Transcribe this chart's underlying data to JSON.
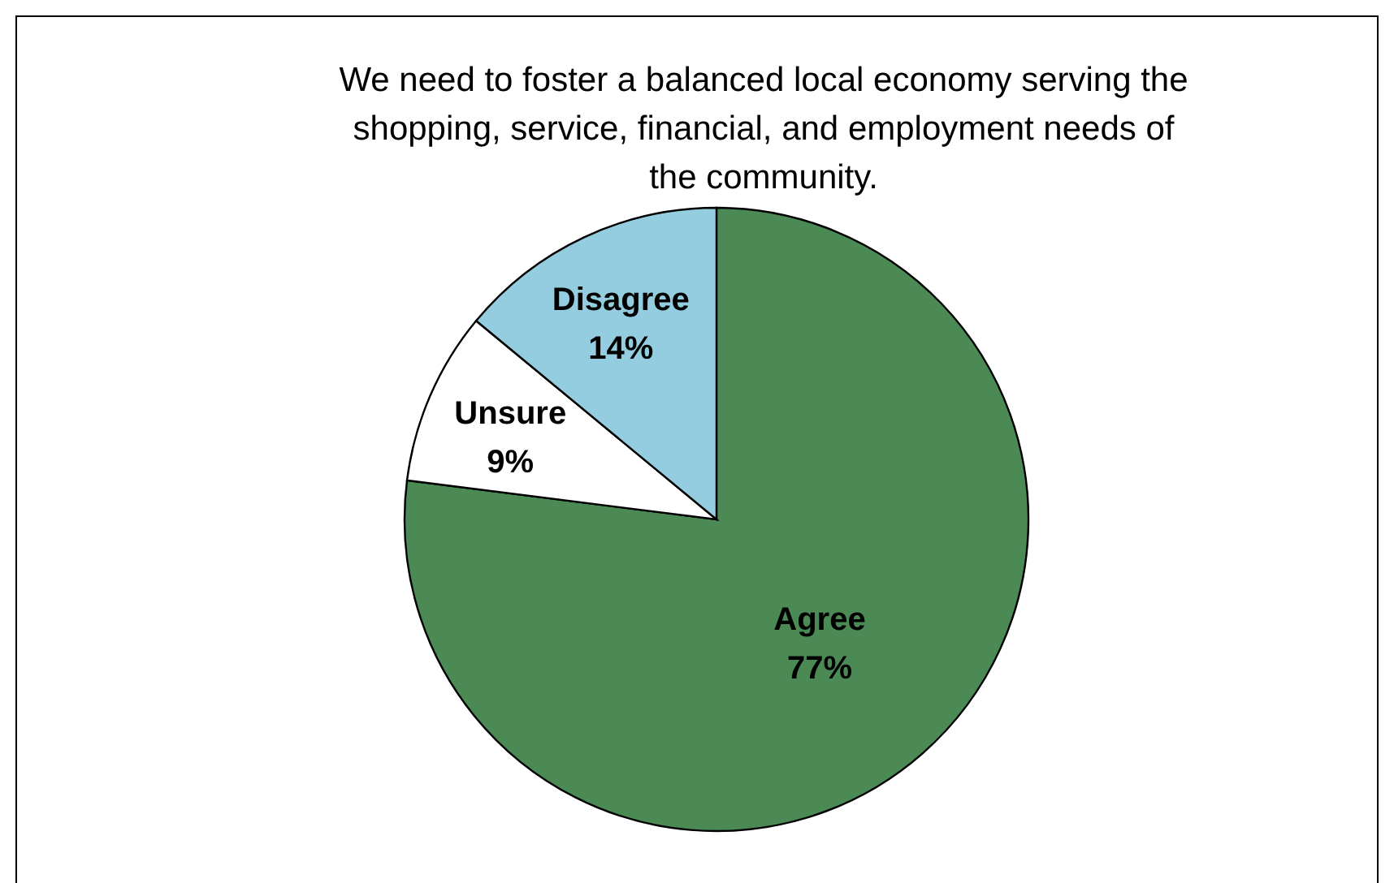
{
  "chart_data": {
    "type": "pie",
    "title": "We need to foster a balanced local economy serving the shopping, service, financial, and employment needs of the community.",
    "categories": [
      "Agree",
      "Unsure",
      "Disagree"
    ],
    "values": [
      77,
      9,
      14
    ],
    "colors": [
      "#4b8a55",
      "#ffffff",
      "#93cddf"
    ],
    "value_labels": [
      "77%",
      "9%",
      "14%"
    ]
  }
}
